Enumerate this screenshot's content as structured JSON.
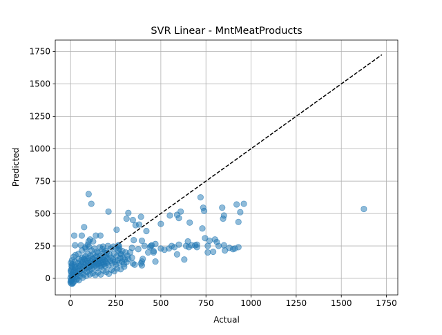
{
  "chart_data": {
    "type": "scatter",
    "title": "SVR Linear - MntMeatProducts",
    "xlabel": "Actual",
    "ylabel": "Predicted",
    "xlim": [
      -85,
      1813
    ],
    "ylim": [
      -128,
      1838
    ],
    "xticks": [
      0,
      250,
      500,
      750,
      1000,
      1250,
      1500,
      1750
    ],
    "yticks": [
      0,
      250,
      500,
      750,
      1000,
      1250,
      1500,
      1750
    ],
    "grid": true,
    "colors": {
      "points": "#1f77b4",
      "reference_line": "#000000",
      "grid": "#b0b0b0"
    },
    "reference_line": {
      "style": "dashed",
      "x": [
        0,
        1725
      ],
      "y": [
        0,
        1725
      ]
    },
    "series": [
      {
        "points": [
          [
            0,
            -30
          ],
          [
            2,
            -20
          ],
          [
            4,
            -40
          ],
          [
            6,
            -10
          ],
          [
            8,
            10
          ],
          [
            10,
            30
          ],
          [
            3,
            50
          ],
          [
            5,
            70
          ],
          [
            7,
            90
          ],
          [
            9,
            110
          ],
          [
            12,
            -35
          ],
          [
            15,
            0
          ],
          [
            18,
            25
          ],
          [
            20,
            60
          ],
          [
            22,
            100
          ],
          [
            25,
            130
          ],
          [
            28,
            80
          ],
          [
            30,
            45
          ],
          [
            33,
            15
          ],
          [
            35,
            -5
          ],
          [
            38,
            35
          ],
          [
            40,
            75
          ],
          [
            42,
            120
          ],
          [
            45,
            150
          ],
          [
            48,
            95
          ],
          [
            50,
            55
          ],
          [
            52,
            20
          ],
          [
            55,
            40
          ],
          [
            58,
            110
          ],
          [
            60,
            140
          ],
          [
            62,
            70
          ],
          [
            65,
            160
          ],
          [
            68,
            125
          ],
          [
            70,
            90
          ],
          [
            72,
            30
          ],
          [
            75,
            65
          ],
          [
            78,
            105
          ],
          [
            80,
            145
          ],
          [
            82,
            170
          ],
          [
            85,
            115
          ],
          [
            88,
            80
          ],
          [
            90,
            50
          ],
          [
            92,
            135
          ],
          [
            95,
            100
          ],
          [
            98,
            155
          ],
          [
            100,
            120
          ],
          [
            103,
            85
          ],
          [
            105,
            60
          ],
          [
            108,
            140
          ],
          [
            110,
            175
          ],
          [
            112,
            95
          ],
          [
            115,
            130
          ],
          [
            118,
            70
          ],
          [
            120,
            105
          ],
          [
            123,
            150
          ],
          [
            125,
            185
          ],
          [
            128,
            115
          ],
          [
            130,
            90
          ],
          [
            133,
            160
          ],
          [
            135,
            125
          ],
          [
            138,
            100
          ],
          [
            140,
            140
          ],
          [
            143,
            170
          ],
          [
            145,
            110
          ],
          [
            148,
            80
          ],
          [
            150,
            130
          ],
          [
            153,
            195
          ],
          [
            155,
            115
          ],
          [
            158,
            150
          ],
          [
            160,
            95
          ],
          [
            163,
            135
          ],
          [
            165,
            175
          ],
          [
            168,
            120
          ],
          [
            170,
            90
          ],
          [
            173,
            145
          ],
          [
            175,
            105
          ],
          [
            178,
            160
          ],
          [
            180,
            125
          ],
          [
            183,
            200
          ],
          [
            185,
            110
          ],
          [
            188,
            140
          ],
          [
            190,
            165
          ],
          [
            193,
            95
          ],
          [
            195,
            130
          ],
          [
            198,
            175
          ],
          [
            200,
            120
          ],
          [
            205,
            150
          ],
          [
            210,
            100
          ],
          [
            215,
            185
          ],
          [
            220,
            135
          ],
          [
            225,
            160
          ],
          [
            230,
            115
          ],
          [
            235,
            145
          ],
          [
            240,
            190
          ],
          [
            245,
            125
          ],
          [
            250,
            105
          ],
          [
            255,
            170
          ],
          [
            260,
            140
          ],
          [
            265,
            215
          ],
          [
            270,
            120
          ],
          [
            275,
            155
          ],
          [
            280,
            185
          ],
          [
            285,
            130
          ],
          [
            290,
            160
          ],
          [
            295,
            110
          ],
          [
            300,
            145
          ],
          [
            305,
            200
          ],
          [
            310,
            125
          ],
          [
            315,
            175
          ],
          [
            320,
            150
          ],
          [
            0,
            5
          ],
          [
            1,
            60
          ],
          [
            2,
            120
          ],
          [
            3,
            -15
          ],
          [
            4,
            25
          ],
          [
            6,
            95
          ],
          [
            8,
            140
          ],
          [
            11,
            -40
          ],
          [
            14,
            45
          ],
          [
            16,
            165
          ],
          [
            19,
            -25
          ],
          [
            24,
            85
          ],
          [
            27,
            180
          ],
          [
            32,
            -10
          ],
          [
            36,
            55
          ],
          [
            44,
            190
          ],
          [
            46,
            -15
          ],
          [
            54,
            100
          ],
          [
            63,
            215
          ],
          [
            67,
            5
          ],
          [
            74,
            150
          ],
          [
            83,
            230
          ],
          [
            87,
            20
          ],
          [
            94,
            190
          ],
          [
            102,
            245
          ],
          [
            107,
            30
          ],
          [
            116,
            215
          ],
          [
            122,
            40
          ],
          [
            132,
            230
          ],
          [
            137,
            25
          ],
          [
            147,
            205
          ],
          [
            152,
            45
          ],
          [
            162,
            240
          ],
          [
            167,
            30
          ],
          [
            177,
            225
          ],
          [
            182,
            60
          ],
          [
            192,
            210
          ],
          [
            197,
            50
          ],
          [
            207,
            250
          ],
          [
            212,
            35
          ],
          [
            222,
            230
          ],
          [
            227,
            65
          ],
          [
            237,
            245
          ],
          [
            242,
            55
          ],
          [
            252,
            230
          ],
          [
            257,
            75
          ],
          [
            267,
            250
          ],
          [
            277,
            70
          ],
          [
            287,
            210
          ],
          [
            297,
            90
          ],
          [
            57,
            255
          ],
          [
            62,
            330
          ],
          [
            75,
            395
          ],
          [
            82,
            240
          ],
          [
            95,
            260
          ],
          [
            100,
            285
          ],
          [
            108,
            300
          ],
          [
            100,
            650
          ],
          [
            115,
            575
          ],
          [
            140,
            330
          ],
          [
            125,
            285
          ],
          [
            165,
            330
          ],
          [
            180,
            245
          ],
          [
            210,
            515
          ],
          [
            200,
            195
          ],
          [
            255,
            375
          ],
          [
            265,
            255
          ],
          [
            270,
            230
          ],
          [
            275,
            190
          ],
          [
            310,
            460
          ],
          [
            320,
            505
          ],
          [
            345,
            450
          ],
          [
            360,
            410
          ],
          [
            340,
            235
          ],
          [
            350,
            295
          ],
          [
            375,
            225
          ],
          [
            380,
            415
          ],
          [
            390,
            475
          ],
          [
            395,
            290
          ],
          [
            410,
            250
          ],
          [
            420,
            365
          ],
          [
            430,
            200
          ],
          [
            440,
            240
          ],
          [
            450,
            255
          ],
          [
            460,
            210
          ],
          [
            470,
            265
          ],
          [
            470,
            130
          ],
          [
            395,
            100
          ],
          [
            345,
            115
          ],
          [
            395,
            130
          ],
          [
            400,
            150
          ],
          [
            390,
            115
          ],
          [
            330,
            200
          ],
          [
            340,
            160
          ],
          [
            355,
            105
          ],
          [
            445,
            250
          ],
          [
            460,
            200
          ],
          [
            500,
            230
          ],
          [
            500,
            420
          ],
          [
            520,
            220
          ],
          [
            545,
            230
          ],
          [
            550,
            485
          ],
          [
            560,
            250
          ],
          [
            575,
            240
          ],
          [
            590,
            490
          ],
          [
            600,
            465
          ],
          [
            600,
            260
          ],
          [
            590,
            185
          ],
          [
            610,
            515
          ],
          [
            630,
            145
          ],
          [
            640,
            250
          ],
          [
            650,
            285
          ],
          [
            655,
            240
          ],
          [
            660,
            430
          ],
          [
            670,
            255
          ],
          [
            690,
            255
          ],
          [
            700,
            260
          ],
          [
            700,
            240
          ],
          [
            720,
            625
          ],
          [
            730,
            385
          ],
          [
            735,
            545
          ],
          [
            740,
            520
          ],
          [
            745,
            310
          ],
          [
            760,
            250
          ],
          [
            760,
            200
          ],
          [
            770,
            290
          ],
          [
            790,
            205
          ],
          [
            800,
            300
          ],
          [
            810,
            280
          ],
          [
            820,
            250
          ],
          [
            840,
            545
          ],
          [
            845,
            460
          ],
          [
            850,
            485
          ],
          [
            850,
            255
          ],
          [
            855,
            215
          ],
          [
            880,
            235
          ],
          [
            900,
            225
          ],
          [
            910,
            230
          ],
          [
            920,
            570
          ],
          [
            930,
            240
          ],
          [
            930,
            435
          ],
          [
            940,
            510
          ],
          [
            960,
            575
          ],
          [
            20,
            330
          ],
          [
            25,
            255
          ],
          [
            1625,
            535
          ]
        ]
      }
    ]
  }
}
